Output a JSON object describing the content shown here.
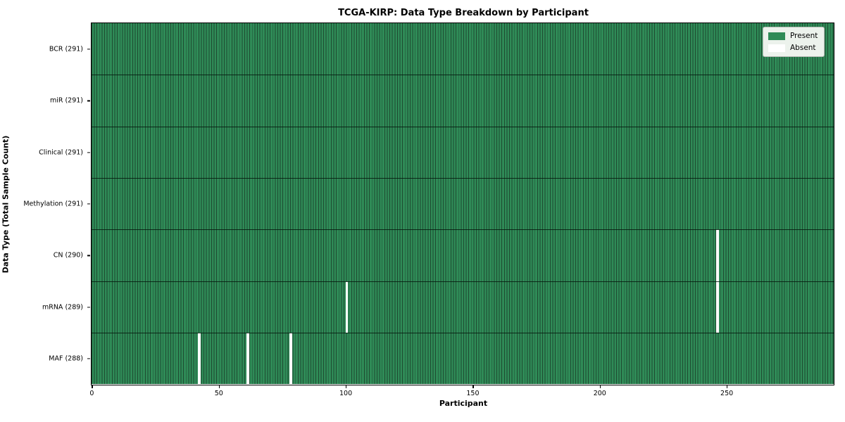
{
  "chart_data": {
    "type": "heatmap",
    "title": "TCGA-KIRP: Data Type Breakdown by Participant",
    "xlabel": "Participant",
    "ylabel": "Data Type (Total Sample Count)",
    "n_participants": 291,
    "x_ticks": [
      0,
      50,
      100,
      150,
      200,
      250
    ],
    "x_range": [
      0,
      292
    ],
    "grid": false,
    "rows": [
      {
        "data_type": "BCR",
        "label": "BCR (291)",
        "total": 291,
        "absent_participants": []
      },
      {
        "data_type": "miR",
        "label": "miR (291)",
        "total": 291,
        "absent_participants": []
      },
      {
        "data_type": "Clinical",
        "label": "Clinical (291)",
        "total": 291,
        "absent_participants": []
      },
      {
        "data_type": "Methylation",
        "label": "Methylation (291)",
        "total": 291,
        "absent_participants": []
      },
      {
        "data_type": "CN",
        "label": "CN (290)",
        "total": 290,
        "absent_participants": [
          246
        ]
      },
      {
        "data_type": "mRNA",
        "label": "mRNA (289)",
        "total": 289,
        "absent_participants": [
          100,
          246
        ]
      },
      {
        "data_type": "MAF",
        "label": "MAF (288)",
        "total": 288,
        "absent_participants": [
          42,
          61,
          78
        ]
      }
    ],
    "legend": {
      "position": "upper right",
      "items": [
        {
          "label": "Present",
          "color": "#2f8b57"
        },
        {
          "label": "Absent",
          "color": "#ffffff"
        }
      ]
    },
    "colors": {
      "present": "#2f8b57",
      "bar_edge": "#1e4a30",
      "absent": "#ffffff",
      "spine": "#000000"
    }
  }
}
